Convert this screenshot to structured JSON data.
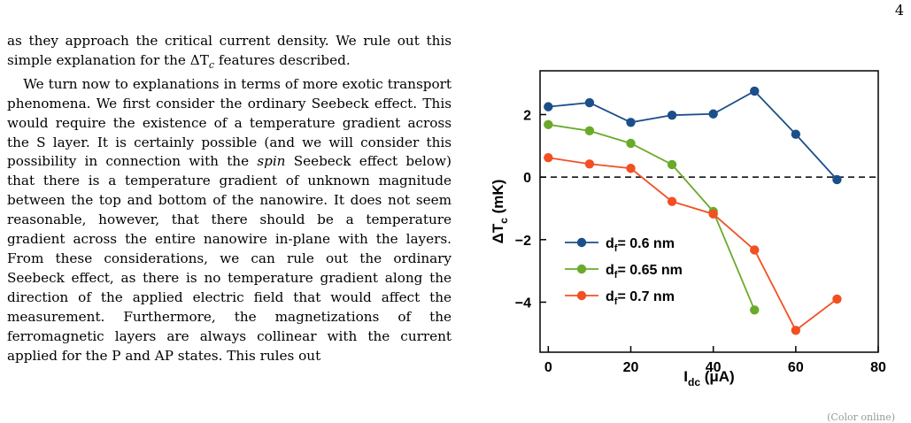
{
  "page": {
    "number": "4"
  },
  "text": {
    "p1": [
      "as they approach the critical current density. We rule out",
      "this simple explanation for the ΔT",
      "c",
      " features described."
    ],
    "p2": [
      "We turn now to explanations in terms of more exotic transport phenomena. We first consider the ordinary Seebeck effect. This would require the existence of a temperature gradient across the S layer. It is certainly possible (and we will consider this possibility in connection with the ",
      "spin",
      " Seebeck effect below) that there is a temperature gradient of unknown magnitude between the top and bottom of the nanowire. It does not seem reasonable, however, that there should be a temperature gradient across the entire nanowire in-plane with the layers. From these considerations, we can rule out the ordinary Seebeck effect, as there is no temperature gradient along the direction of the applied electric field that would affect the measurement. Furthermore, the magnetizations of the ferromagnetic layers are always collinear with the current applied for the P and AP states. This rules out"
    ]
  },
  "chart_data": {
    "type": "line",
    "xlabel": "I_dc (μA)",
    "ylabel": "ΔT_c (mK)",
    "xlim": [
      -2,
      80
    ],
    "ylim": [
      -5.6,
      3.4
    ],
    "xticks": [
      0,
      20,
      40,
      60,
      80
    ],
    "yticks": [
      -4,
      -2,
      0,
      2
    ],
    "grid": false,
    "legend_position": "lower-left",
    "reference_line": {
      "y": 0,
      "style": "dashed"
    },
    "series": [
      {
        "name": "d_f= 0.6 nm",
        "color": "#1b4f8a",
        "x": [
          0,
          10,
          20,
          30,
          40,
          50,
          60,
          70
        ],
        "y": [
          2.25,
          2.38,
          1.75,
          1.98,
          2.02,
          2.75,
          1.37,
          -0.08
        ]
      },
      {
        "name": "d_f= 0.65 nm",
        "color": "#6aaa2a",
        "x": [
          0,
          10,
          20,
          30,
          40,
          50
        ],
        "y": [
          1.68,
          1.48,
          1.08,
          0.4,
          -1.1,
          -4.25
        ]
      },
      {
        "name": "d_f= 0.7 nm",
        "color": "#f25022",
        "x": [
          0,
          10,
          20,
          30,
          40,
          50,
          60,
          70
        ],
        "y": [
          0.62,
          0.42,
          0.28,
          -0.78,
          -1.18,
          -2.33,
          -4.9,
          -3.9
        ]
      }
    ],
    "legend": [
      {
        "main": "d",
        "sub": "f",
        "rest": "= 0.6 nm"
      },
      {
        "main": "d",
        "sub": "f",
        "rest": "= 0.65 nm"
      },
      {
        "main": "d",
        "sub": "f",
        "rest": "= 0.7 nm"
      }
    ],
    "axis_text": {
      "x_main": "I",
      "x_sub": "dc",
      "x_rest": " (μA)",
      "y_main": "ΔT",
      "y_sub": "c",
      "y_rest": " (mK)"
    }
  },
  "fragment": "(Color online)"
}
